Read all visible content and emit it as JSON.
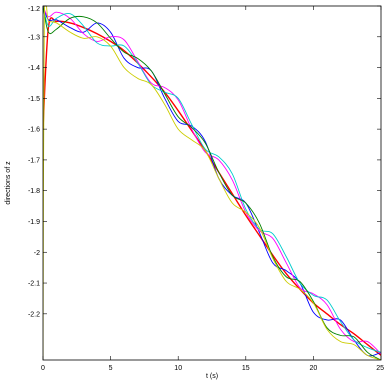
{
  "chart_data": {
    "type": "line",
    "title": "",
    "xlabel": "t (s)",
    "ylabel": "directions of z",
    "xlim": [
      0,
      25
    ],
    "ylim": [
      -2.35,
      -1.2
    ],
    "xticks": [
      0,
      5,
      10,
      15,
      20,
      25
    ],
    "xtick_labels": [
      "0",
      "5",
      "10",
      "15",
      "20",
      "25"
    ],
    "yticks": [
      -1.2,
      -1.3,
      -1.4,
      -1.5,
      -1.6,
      -1.7,
      -1.8,
      -1.9,
      -2,
      -2.1,
      -2.2
    ],
    "ytick_labels": [
      "-1.2",
      "-1.3",
      "-1.4",
      "-1.5",
      "-1.6",
      "-1.7",
      "-1.8",
      "-1.9",
      "-2",
      "-2.1",
      "-2.2"
    ],
    "grid": false,
    "legend": "none",
    "series": [
      {
        "color": "#ff0000",
        "x": [
          0,
          0.4,
          1,
          2,
          3,
          4,
          5,
          6,
          7,
          8,
          9,
          10,
          11,
          12,
          13,
          14,
          15,
          16,
          17,
          18,
          19,
          20,
          21,
          22,
          23,
          24,
          25
        ],
        "y": [
          -1.6,
          -1.27,
          -1.25,
          -1.255,
          -1.27,
          -1.29,
          -1.315,
          -1.345,
          -1.385,
          -1.43,
          -1.48,
          -1.54,
          -1.605,
          -1.67,
          -1.74,
          -1.81,
          -1.88,
          -1.945,
          -2.01,
          -2.07,
          -2.12,
          -2.165,
          -2.2,
          -2.235,
          -2.265,
          -2.3,
          -2.335
        ]
      },
      {
        "color": "#0000ff",
        "x": [
          0,
          0.4,
          1,
          2,
          3,
          4,
          5,
          6,
          7,
          8,
          9,
          10,
          11,
          12,
          13,
          14,
          15,
          16,
          17,
          18,
          19,
          20,
          21,
          22,
          23,
          24,
          25
        ],
        "y": [
          -1.2,
          -1.245,
          -1.245,
          -1.27,
          -1.285,
          -1.255,
          -1.285,
          -1.37,
          -1.4,
          -1.41,
          -1.5,
          -1.575,
          -1.59,
          -1.64,
          -1.76,
          -1.815,
          -1.84,
          -1.935,
          -2.035,
          -2.06,
          -2.1,
          -2.195,
          -2.22,
          -2.22,
          -2.285,
          -2.335,
          -2.325
        ]
      },
      {
        "color": "#ff00ff",
        "x": [
          0,
          0.4,
          1,
          2,
          3,
          4,
          5,
          6,
          7,
          8,
          9,
          10,
          11,
          12,
          13,
          14,
          15,
          16,
          17,
          18,
          19,
          20,
          21,
          22,
          23,
          24,
          25
        ],
        "y": [
          -1.2,
          -1.235,
          -1.22,
          -1.24,
          -1.29,
          -1.315,
          -1.3,
          -1.31,
          -1.38,
          -1.45,
          -1.465,
          -1.505,
          -1.6,
          -1.675,
          -1.7,
          -1.765,
          -1.87,
          -1.93,
          -1.955,
          -2.035,
          -2.115,
          -2.135,
          -2.17,
          -2.25,
          -2.29,
          -2.29,
          -2.33
        ]
      },
      {
        "color": "#00cccc",
        "x": [
          0,
          0.4,
          1,
          2,
          3,
          4,
          5,
          6,
          7,
          8,
          9,
          10,
          11,
          12,
          13,
          14,
          15,
          16,
          17,
          18,
          19,
          20,
          21,
          22,
          23,
          24,
          25
        ],
        "y": [
          -1.2,
          -1.265,
          -1.24,
          -1.225,
          -1.265,
          -1.32,
          -1.33,
          -1.33,
          -1.385,
          -1.455,
          -1.48,
          -1.5,
          -1.585,
          -1.665,
          -1.69,
          -1.745,
          -1.86,
          -1.925,
          -1.94,
          -2.015,
          -2.1,
          -2.14,
          -2.155,
          -2.225,
          -2.285,
          -2.31,
          -2.325
        ]
      },
      {
        "color": "#008000",
        "x": [
          0,
          0.4,
          1,
          2,
          3,
          4,
          5,
          6,
          7,
          8,
          9,
          10,
          11,
          12,
          13,
          14,
          15,
          16,
          17,
          18,
          19,
          20,
          21,
          22,
          23,
          24,
          25
        ],
        "y": [
          -1.2,
          -1.285,
          -1.275,
          -1.24,
          -1.235,
          -1.255,
          -1.305,
          -1.35,
          -1.37,
          -1.41,
          -1.485,
          -1.56,
          -1.595,
          -1.645,
          -1.74,
          -1.815,
          -1.84,
          -1.905,
          -2.015,
          -2.08,
          -2.095,
          -2.16,
          -2.245,
          -2.27,
          -2.275,
          -2.325,
          -2.35
        ]
      },
      {
        "color": "#cccc00",
        "x": [
          0,
          0.1,
          0.4,
          1,
          2,
          3,
          4,
          5,
          6,
          7,
          8,
          9,
          10,
          11,
          12,
          13,
          14,
          15,
          16,
          17,
          18,
          19,
          20,
          21,
          22,
          23,
          24,
          25
        ],
        "y": [
          -2.35,
          -1.24,
          -1.25,
          -1.255,
          -1.285,
          -1.305,
          -1.3,
          -1.33,
          -1.4,
          -1.435,
          -1.455,
          -1.52,
          -1.6,
          -1.635,
          -1.67,
          -1.76,
          -1.84,
          -1.87,
          -1.92,
          -2.02,
          -2.095,
          -2.12,
          -2.165,
          -2.25,
          -2.29,
          -2.3,
          -2.335,
          -2.35
        ]
      }
    ]
  }
}
